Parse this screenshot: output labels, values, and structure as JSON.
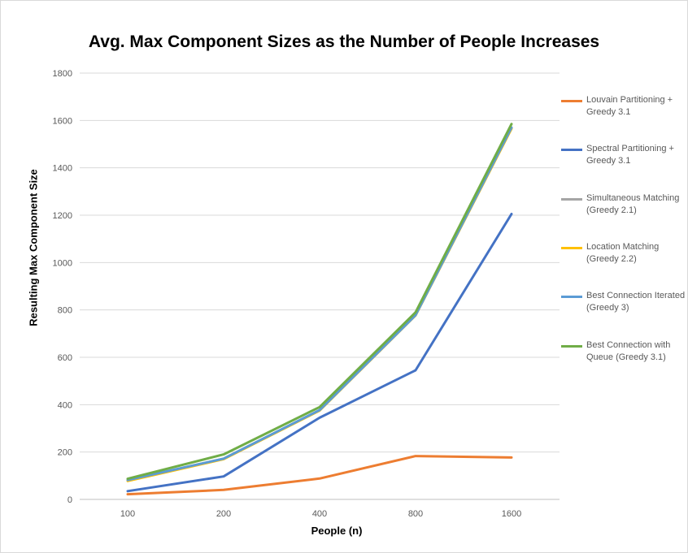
{
  "chart_data": {
    "type": "line",
    "title": "Avg. Max Component Sizes as the Number of People Increases",
    "xlabel": "People (n)",
    "ylabel": "Resulting Max Component Size",
    "categories": [
      "100",
      "200",
      "400",
      "800",
      "1600"
    ],
    "ylim": [
      0,
      1800
    ],
    "yticks": [
      0,
      200,
      400,
      600,
      800,
      1000,
      1200,
      1400,
      1600,
      1800
    ],
    "grid": true,
    "legend_position": "right",
    "series": [
      {
        "name": "Louvain Partitioning + Greedy 3.1",
        "color": "#ED7D31",
        "values": [
          22,
          40,
          88,
          183,
          177
        ]
      },
      {
        "name": "Spectral Partitioning + Greedy 3.1",
        "color": "#4472C4",
        "values": [
          35,
          97,
          345,
          545,
          1205
        ]
      },
      {
        "name": "Simultaneous Matching (Greedy 2.1)",
        "color": "#A5A5A5",
        "values": [
          80,
          172,
          376,
          778,
          1568
        ]
      },
      {
        "name": "Location Matching (Greedy 2.2)",
        "color": "#FFC000",
        "values": [
          78,
          170,
          375,
          777,
          1565
        ]
      },
      {
        "name": "Best Connection Iterated (Greedy 3)",
        "color": "#5B9BD5",
        "values": [
          82,
          172,
          377,
          778,
          1570
        ]
      },
      {
        "name": "Best Connection with Queue (Greedy 3.1)",
        "color": "#70AD47",
        "values": [
          87,
          190,
          390,
          790,
          1585
        ]
      }
    ]
  }
}
